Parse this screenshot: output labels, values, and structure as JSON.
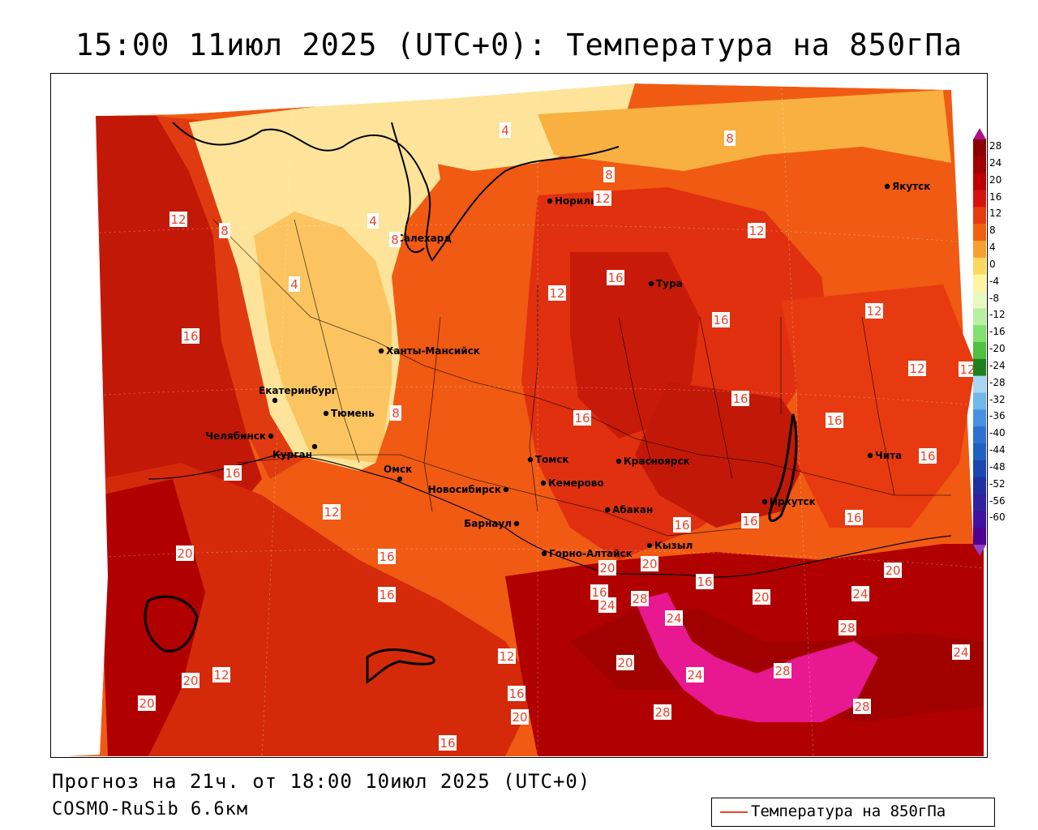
{
  "title": "15:00 11июл 2025 (UTC+0): Температура на 850гПа",
  "footer": {
    "forecast": "Прогноз на 21ч. от 18:00 10июл 2025 (UTC+0)",
    "model": "COSMO-RuSib 6.6км"
  },
  "legend": {
    "label": "Температура на 850гПа",
    "color": "#e8442c"
  },
  "colorbar": {
    "labels": [
      "28",
      "24",
      "20",
      "16",
      "12",
      "8",
      "4",
      "0",
      "-4",
      "-8",
      "-12",
      "-16",
      "-20",
      "-24",
      "-28",
      "-32",
      "-36",
      "-40",
      "-44",
      "-48",
      "-52",
      "-56",
      "-60"
    ],
    "colors": [
      "#a00000",
      "#c00000",
      "#d81010",
      "#e83a10",
      "#f06010",
      "#f7a030",
      "#fdd860",
      "#fff4a0",
      "#e8f8c0",
      "#b8f0a0",
      "#80e070",
      "#50c040",
      "#208020",
      "#a8d8f0",
      "#70b8e8",
      "#4890e0",
      "#3070d0",
      "#2060c0",
      "#1848b0",
      "#2030a0",
      "#3020a0",
      "#4010a0",
      "#500090"
    ]
  },
  "cities": [
    {
      "name": "Салехард",
      "id": "salekhard"
    },
    {
      "name": "Норильск",
      "id": "norilsk"
    },
    {
      "name": "Якутск",
      "id": "yakutsk"
    },
    {
      "name": "Тура",
      "id": "tura"
    },
    {
      "name": "Ханты-Мансийск",
      "id": "khanty"
    },
    {
      "name": "Екатеринбург",
      "id": "yekaterinburg"
    },
    {
      "name": "Тюмень",
      "id": "tyumen"
    },
    {
      "name": "Челябинск",
      "id": "chelyabinsk"
    },
    {
      "name": "Курган",
      "id": "kurgan"
    },
    {
      "name": "Омск",
      "id": "omsk"
    },
    {
      "name": "Новосибирск",
      "id": "novosibirsk"
    },
    {
      "name": "Томск",
      "id": "tomsk"
    },
    {
      "name": "Кемерово",
      "id": "kemerovo"
    },
    {
      "name": "Красноярск",
      "id": "krasnoyarsk"
    },
    {
      "name": "Барнаул",
      "id": "barnaul"
    },
    {
      "name": "Абакан",
      "id": "abakan"
    },
    {
      "name": "Горно-Алтайск",
      "id": "gorno"
    },
    {
      "name": "Кызыл",
      "id": "kyzyl"
    },
    {
      "name": "Иркутск",
      "id": "irkutsk"
    },
    {
      "name": "Чита",
      "id": "chita"
    }
  ],
  "isolines": [
    "4",
    "4",
    "4",
    "8",
    "8",
    "8",
    "12",
    "12",
    "12",
    "12",
    "12",
    "12",
    "12",
    "12",
    "12",
    "16",
    "16",
    "16",
    "16",
    "16",
    "16",
    "16",
    "16",
    "16",
    "16",
    "16",
    "16",
    "16",
    "16",
    "20",
    "20",
    "20",
    "20",
    "20",
    "20",
    "20",
    "20",
    "20",
    "24",
    "24",
    "24",
    "24",
    "24",
    "28",
    "28",
    "28",
    "28",
    "28",
    "8",
    "8",
    "12",
    "16",
    "16",
    "16"
  ],
  "colors": {
    "deep_red": "#b00000",
    "red": "#d42010",
    "orange_red": "#f04010",
    "orange": "#f57a10",
    "light_orange": "#f8b040",
    "pale_yellow": "#fde49a",
    "magenta": "#e81890",
    "isoline": "#e8442c"
  }
}
